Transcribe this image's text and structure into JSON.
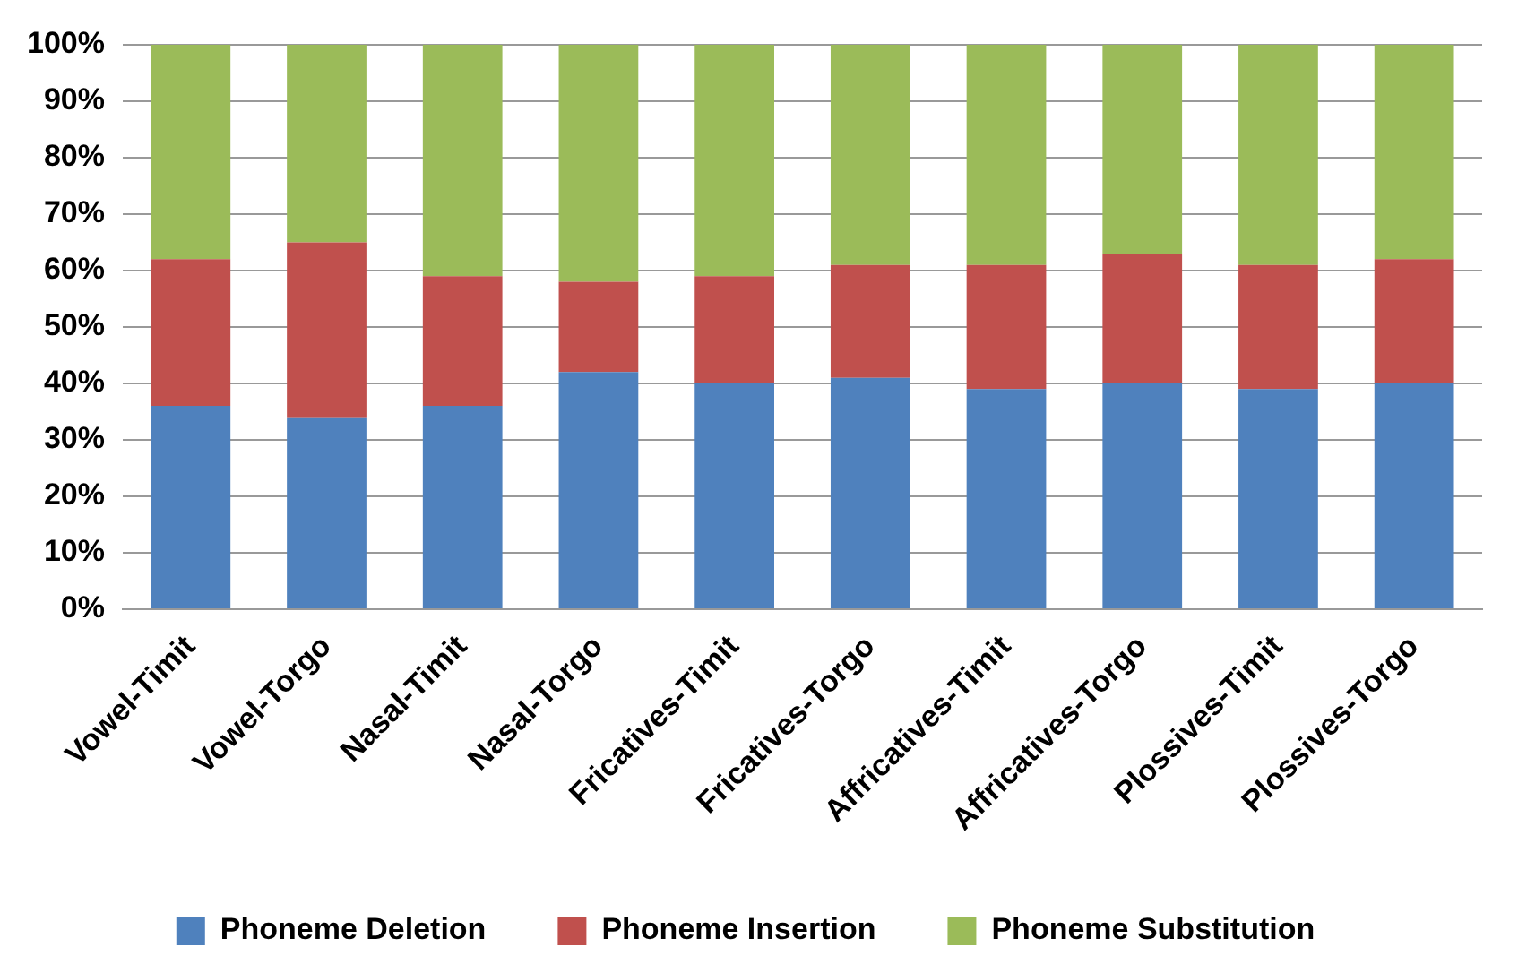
{
  "chart_data": {
    "type": "bar",
    "stacked": true,
    "categories": [
      "Vowel-Timit",
      "Vowel-Torgo",
      "Nasal-Timit",
      "Nasal-Torgo",
      "Fricatives-Timit",
      "Fricatives-Torgo",
      "Affricatives-Timit",
      "Affricatives-Torgo",
      "Plossives-Timit",
      "Plossives-Torgo"
    ],
    "series": [
      {
        "name": "Phoneme Deletion",
        "color": "#4f81bd",
        "values": [
          36,
          34,
          36,
          42,
          40,
          41,
          39,
          40,
          39,
          40
        ]
      },
      {
        "name": "Phoneme Insertion",
        "color": "#c0504d",
        "values": [
          26,
          31,
          23,
          16,
          19,
          20,
          22,
          23,
          22,
          22
        ]
      },
      {
        "name": "Phoneme Substitution",
        "color": "#9bbb59",
        "values": [
          38,
          35,
          41,
          42,
          41,
          39,
          39,
          37,
          39,
          38
        ]
      }
    ],
    "ylim": [
      0,
      100
    ],
    "yticks": [
      {
        "value": 0,
        "label": "0%"
      },
      {
        "value": 10,
        "label": "10%"
      },
      {
        "value": 20,
        "label": "20%"
      },
      {
        "value": 30,
        "label": "30%"
      },
      {
        "value": 40,
        "label": "40%"
      },
      {
        "value": 50,
        "label": "50%"
      },
      {
        "value": 60,
        "label": "60%"
      },
      {
        "value": 70,
        "label": "70%"
      },
      {
        "value": 80,
        "label": "80%"
      },
      {
        "value": 90,
        "label": "90%"
      },
      {
        "value": 100,
        "label": "100%"
      }
    ],
    "grid": "y",
    "legend": "bottom"
  }
}
